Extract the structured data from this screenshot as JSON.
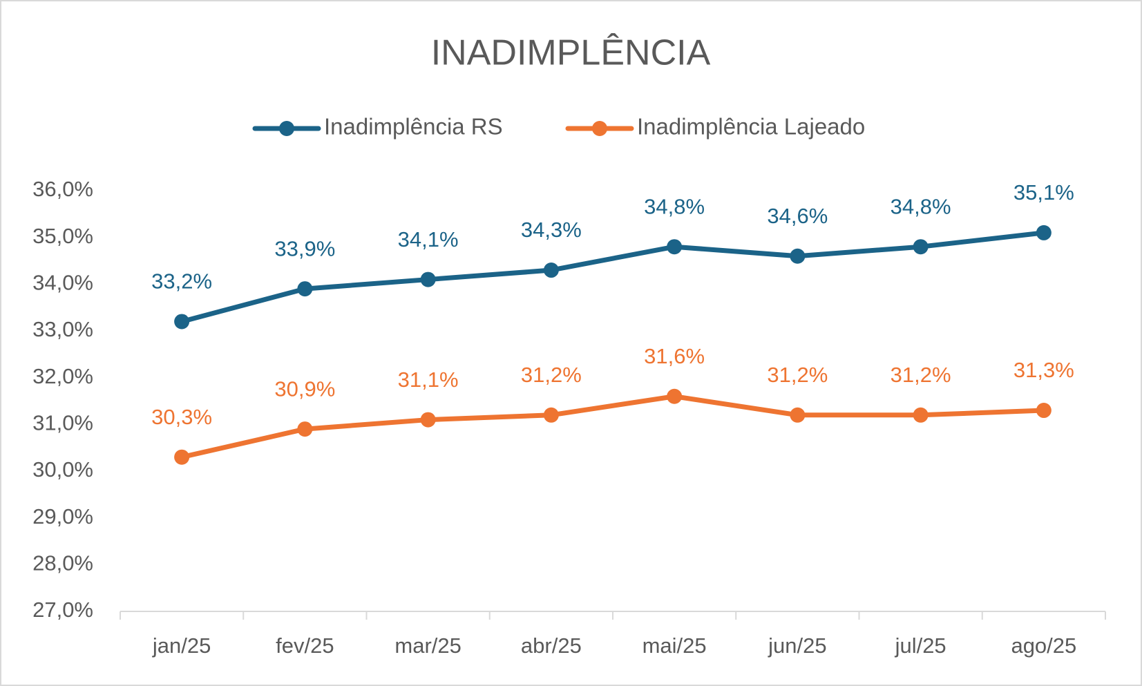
{
  "chart_data": {
    "type": "line",
    "title": "INADIMPLÊNCIA",
    "categories": [
      "jan/25",
      "fev/25",
      "mar/25",
      "abr/25",
      "mai/25",
      "jun/25",
      "jul/25",
      "ago/25"
    ],
    "series": [
      {
        "name": "Inadimplência RS",
        "color": "#1b6388",
        "values": [
          33.2,
          33.9,
          34.1,
          34.3,
          34.8,
          34.6,
          34.8,
          35.1
        ],
        "value_labels": [
          "33,2%",
          "33,9%",
          "34,1%",
          "34,3%",
          "34,8%",
          "34,6%",
          "34,8%",
          "35,1%"
        ]
      },
      {
        "name": "Inadimplência Lajeado",
        "color": "#ee7431",
        "values": [
          30.3,
          30.9,
          31.1,
          31.2,
          31.6,
          31.2,
          31.2,
          31.3
        ],
        "value_labels": [
          "30,3%",
          "30,9%",
          "31,1%",
          "31,2%",
          "31,6%",
          "31,2%",
          "31,2%",
          "31,3%"
        ]
      }
    ],
    "ylim": [
      27,
      36
    ],
    "yticks": [
      {
        "value": 27,
        "label": "27,0%"
      },
      {
        "value": 28,
        "label": "28,0%"
      },
      {
        "value": 29,
        "label": "29,0%"
      },
      {
        "value": 30,
        "label": "30,0%"
      },
      {
        "value": 31,
        "label": "31,0%"
      },
      {
        "value": 32,
        "label": "32,0%"
      },
      {
        "value": 33,
        "label": "33,0%"
      },
      {
        "value": 34,
        "label": "34,0%"
      },
      {
        "value": 35,
        "label": "35,0%"
      },
      {
        "value": 36,
        "label": "36,0%"
      }
    ],
    "grid": false,
    "legend": "top"
  }
}
